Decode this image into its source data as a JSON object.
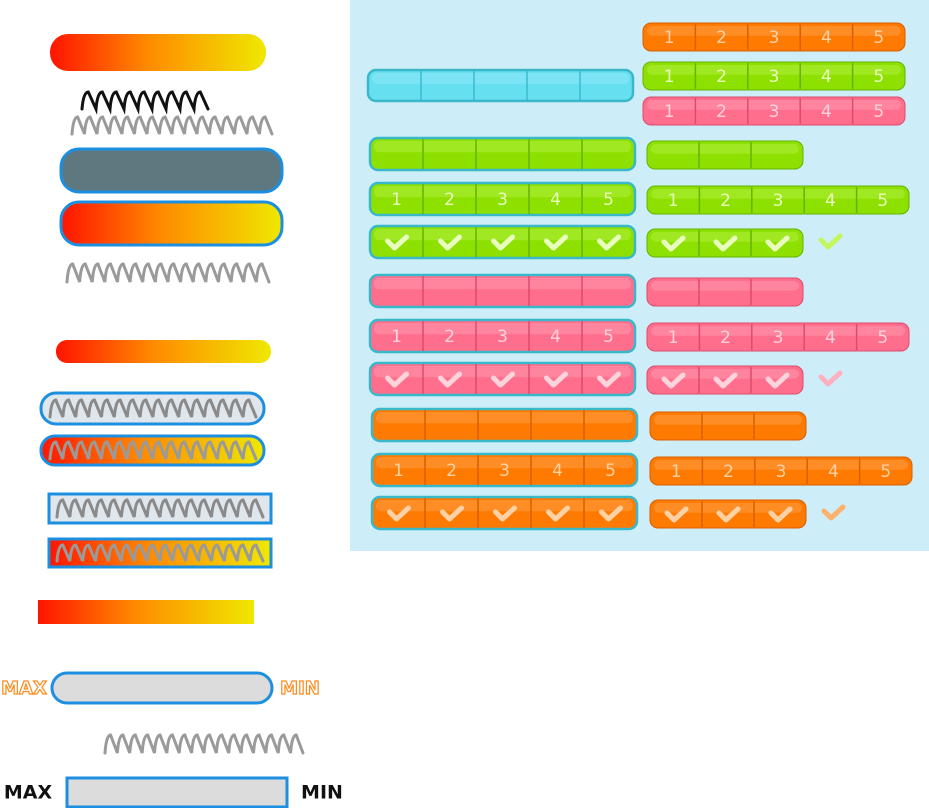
{
  "segment_labels": [
    "1",
    "2",
    "3",
    "4",
    "5"
  ],
  "range_labels_outline": {
    "max": "MAX",
    "min": "MIN"
  },
  "range_labels_bold": {
    "max": "MAX",
    "min": "MIN"
  }
}
